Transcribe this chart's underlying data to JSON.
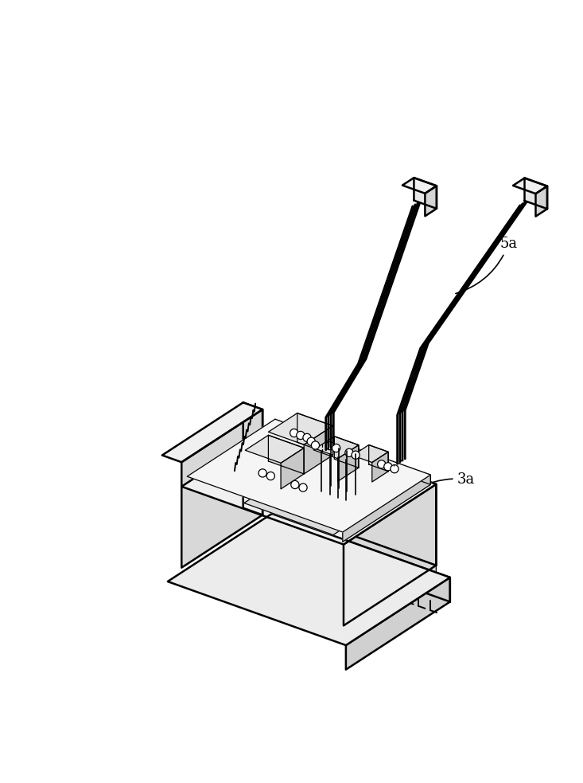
{
  "bg_color": "#ffffff",
  "line_color": "#000000",
  "label_5a": "5a",
  "label_3a": "3a",
  "fig_width": 7.33,
  "fig_height": 9.83,
  "dpi": 100,
  "lw_main": 1.8,
  "lw_thin": 0.9,
  "lw_wire": 2.0
}
